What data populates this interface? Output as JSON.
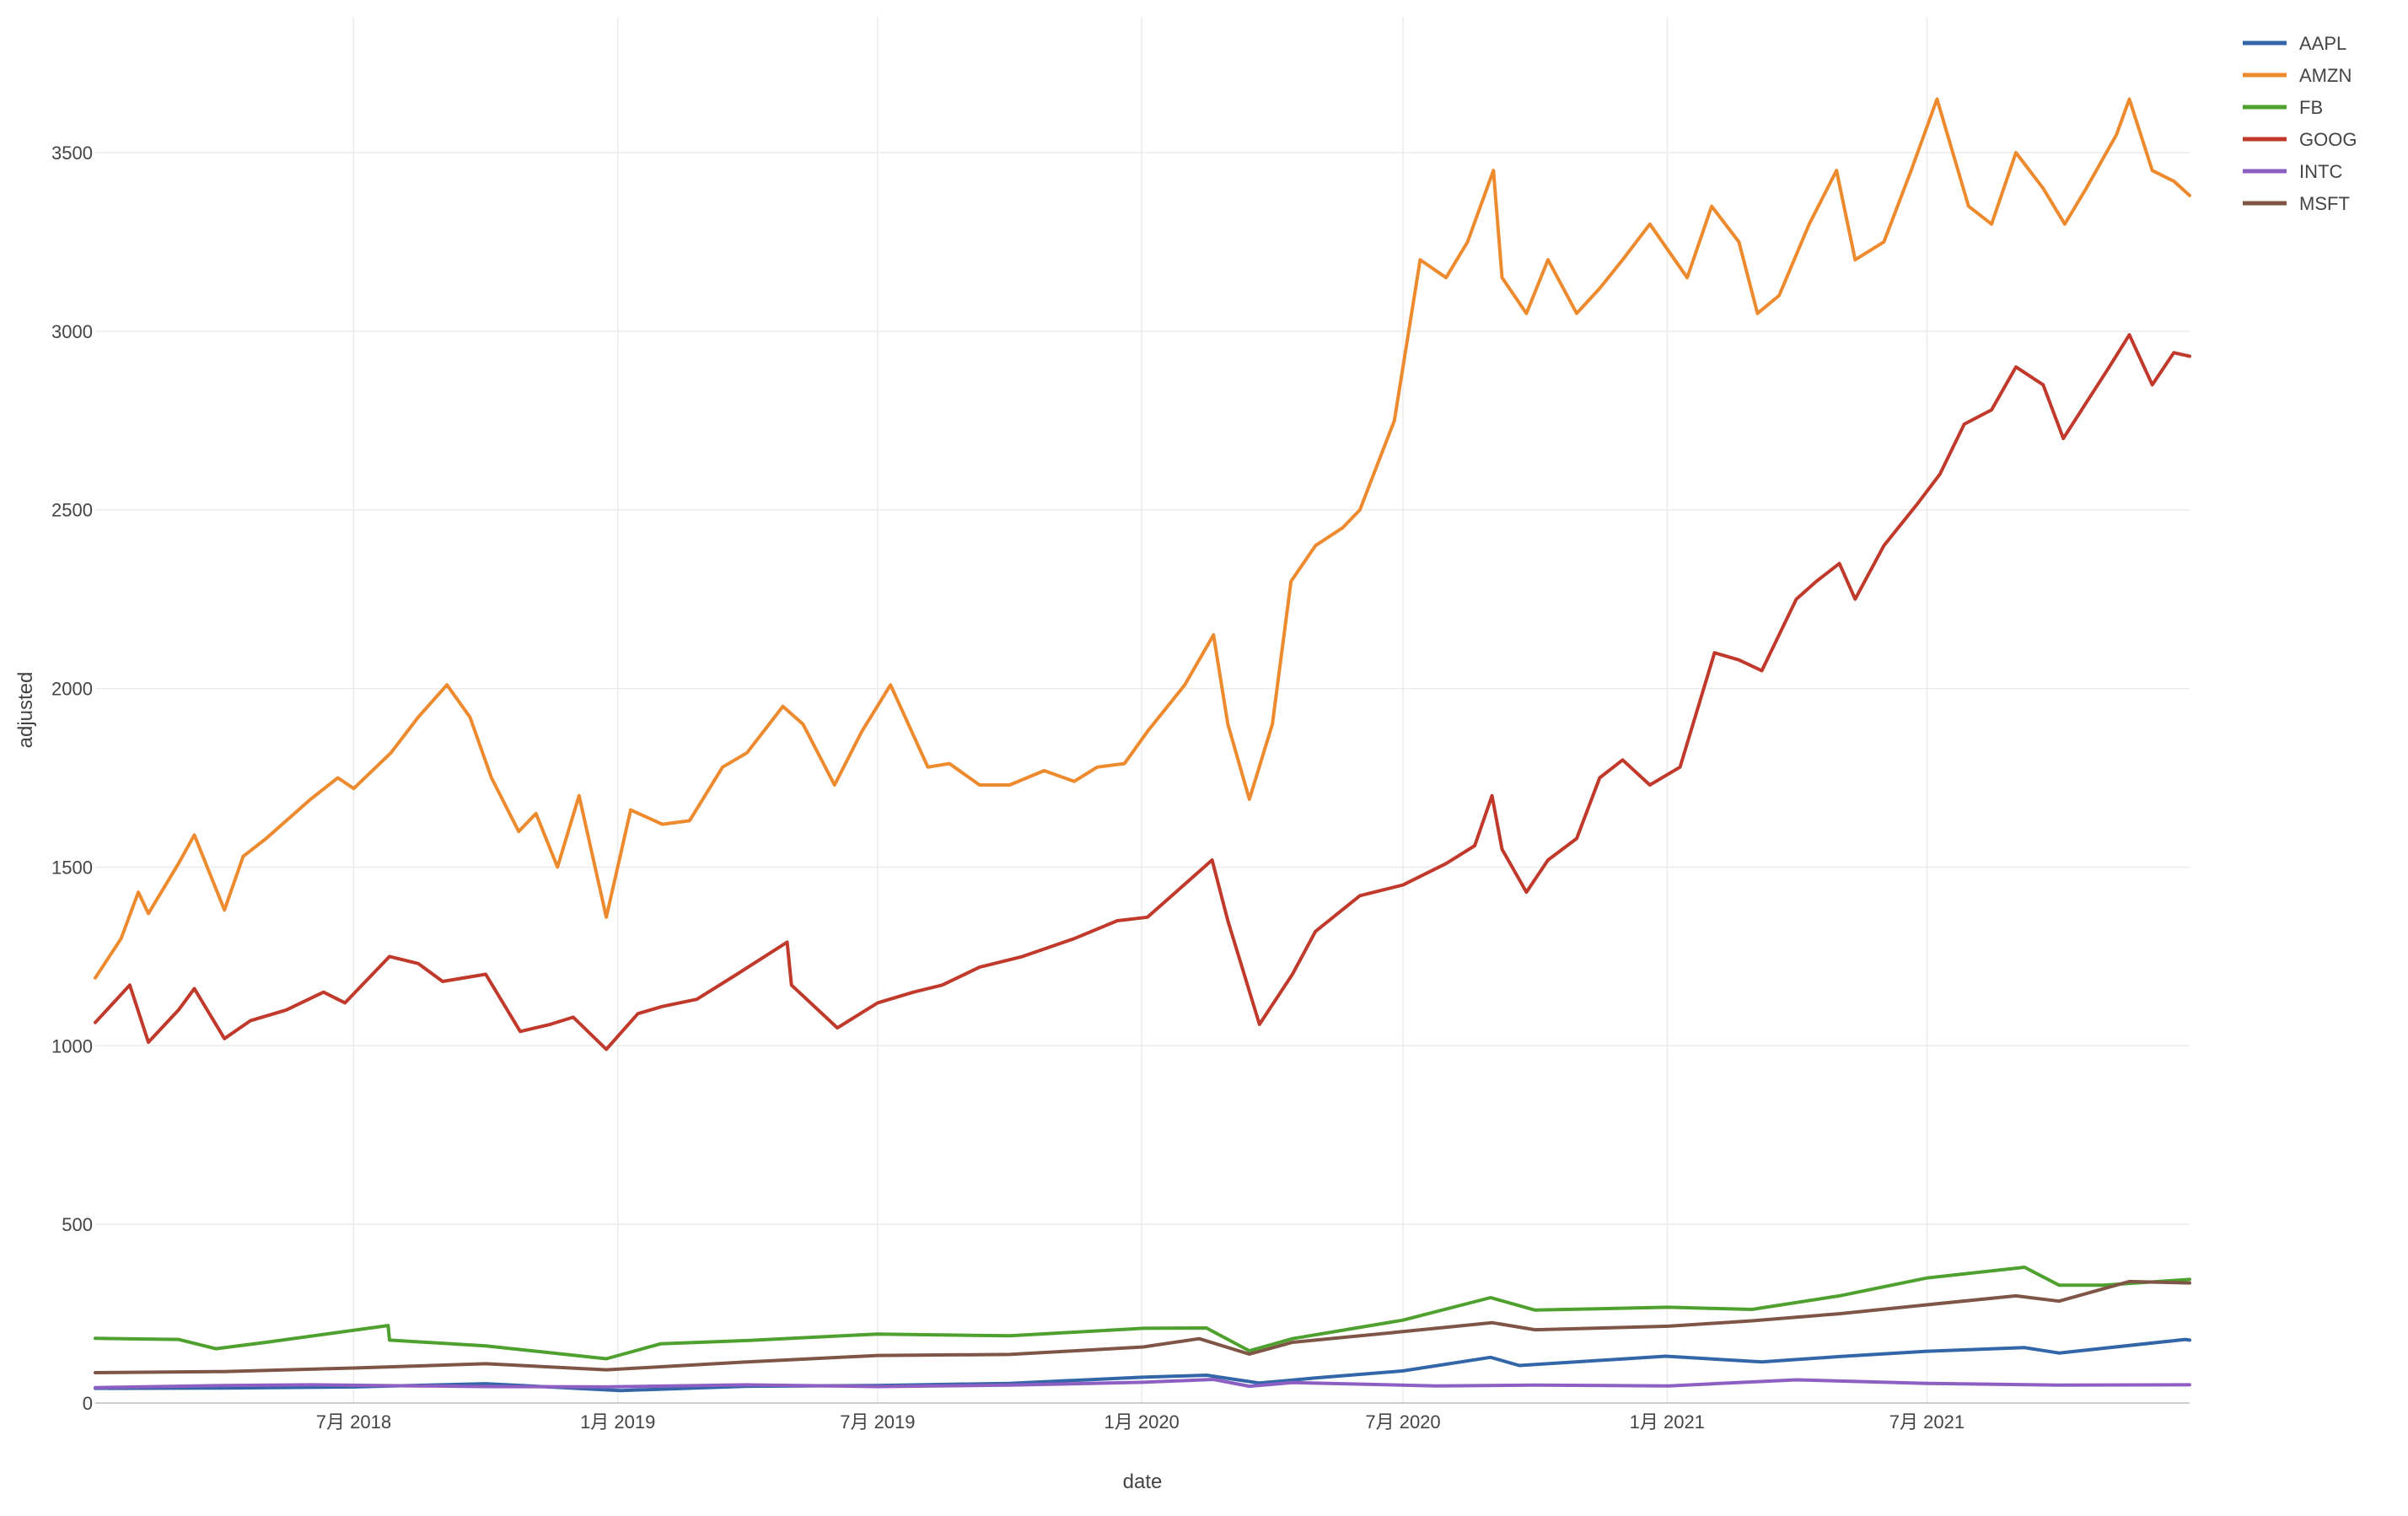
{
  "chart_data": {
    "type": "line",
    "xlabel": "date",
    "ylabel": "adjusted",
    "ylim": [
      0,
      3880
    ],
    "xlim": [
      "2018-01-02",
      "2021-12-31"
    ],
    "grid": true,
    "legend_position": "top-right",
    "y_ticks": [
      0,
      500,
      1000,
      1500,
      2000,
      2500,
      3000,
      3500
    ],
    "x_ticks": [
      {
        "date": "2018-07-01",
        "label": "7月 2018"
      },
      {
        "date": "2019-01-01",
        "label": "1月 2019"
      },
      {
        "date": "2019-07-01",
        "label": "7月 2019"
      },
      {
        "date": "2020-01-01",
        "label": "1月 2020"
      },
      {
        "date": "2020-07-01",
        "label": "7月 2020"
      },
      {
        "date": "2021-01-01",
        "label": "1月 2021"
      },
      {
        "date": "2021-07-01",
        "label": "7月 2021"
      }
    ],
    "series": [
      {
        "name": "AAPL",
        "color": "#3266a8",
        "x": [
          "2018-01-02",
          "2018-04-01",
          "2018-07-01",
          "2018-10-01",
          "2019-01-03",
          "2019-04-01",
          "2019-07-01",
          "2019-10-01",
          "2019-12-31",
          "2020-02-15",
          "2020-03-23",
          "2020-05-01",
          "2020-07-01",
          "2020-08-31",
          "2020-09-20",
          "2020-12-31",
          "2021-03-08",
          "2021-05-01",
          "2021-07-01",
          "2021-09-07",
          "2021-10-01",
          "2021-12-28",
          "2021-12-31"
        ],
        "values": [
          41,
          42,
          45,
          54,
          35,
          47,
          49,
          55,
          72,
          78,
          56,
          70,
          90,
          128,
          105,
          131,
          115,
          130,
          145,
          155,
          140,
          178,
          176
        ]
      },
      {
        "name": "AMZN",
        "color": "#ee8a2e",
        "x": [
          "2018-01-02",
          "2018-01-20",
          "2018-02-01",
          "2018-02-08",
          "2018-03-01",
          "2018-03-12",
          "2018-04-02",
          "2018-04-15",
          "2018-05-01",
          "2018-06-01",
          "2018-06-20",
          "2018-07-01",
          "2018-07-27",
          "2018-08-15",
          "2018-09-04",
          "2018-09-20",
          "2018-10-05",
          "2018-10-24",
          "2018-11-05",
          "2018-11-20",
          "2018-12-05",
          "2018-12-24",
          "2019-01-10",
          "2019-02-01",
          "2019-02-20",
          "2019-03-15",
          "2019-04-01",
          "2019-04-26",
          "2019-05-10",
          "2019-06-01",
          "2019-06-20",
          "2019-07-10",
          "2019-08-05",
          "2019-08-20",
          "2019-09-10",
          "2019-10-01",
          "2019-10-25",
          "2019-11-15",
          "2019-12-01",
          "2019-12-20",
          "2020-01-05",
          "2020-01-31",
          "2020-02-20",
          "2020-03-01",
          "2020-03-16",
          "2020-04-01",
          "2020-04-14",
          "2020-05-01",
          "2020-05-20",
          "2020-06-01",
          "2020-06-25",
          "2020-07-01",
          "2020-07-13",
          "2020-07-31",
          "2020-08-15",
          "2020-09-02",
          "2020-09-08",
          "2020-09-25",
          "2020-10-10",
          "2020-10-30",
          "2020-11-15",
          "2020-12-01",
          "2020-12-20",
          "2021-01-15",
          "2021-02-01",
          "2021-02-20",
          "2021-03-05",
          "2021-03-20",
          "2021-04-10",
          "2021-04-29",
          "2021-05-12",
          "2021-06-01",
          "2021-06-20",
          "2021-07-08",
          "2021-07-30",
          "2021-08-15",
          "2021-09-01",
          "2021-09-20",
          "2021-10-05",
          "2021-10-20",
          "2021-11-10",
          "2021-11-19",
          "2021-12-05",
          "2021-12-20",
          "2021-12-31"
        ],
        "values": [
          1190,
          1300,
          1430,
          1370,
          1510,
          1590,
          1380,
          1530,
          1580,
          1690,
          1750,
          1720,
          1820,
          1920,
          2010,
          1920,
          1750,
          1600,
          1650,
          1500,
          1700,
          1360,
          1660,
          1620,
          1630,
          1780,
          1820,
          1950,
          1900,
          1730,
          1880,
          2010,
          1780,
          1790,
          1730,
          1730,
          1770,
          1740,
          1780,
          1790,
          1880,
          2010,
          2150,
          1900,
          1690,
          1900,
          2300,
          2400,
          2450,
          2500,
          2750,
          2900,
          3200,
          3150,
          3250,
          3450,
          3150,
          3050,
          3200,
          3050,
          3120,
          3200,
          3300,
          3150,
          3350,
          3250,
          3050,
          3100,
          3300,
          3450,
          3200,
          3250,
          3450,
          3650,
          3350,
          3300,
          3500,
          3400,
          3300,
          3400,
          3550,
          3650,
          3450,
          3420,
          3380
        ]
      },
      {
        "name": "FB",
        "color": "#4ea12e",
        "x": [
          "2018-01-02",
          "2018-03-01",
          "2018-03-27",
          "2018-05-01",
          "2018-07-25",
          "2018-07-26",
          "2018-10-01",
          "2018-12-24",
          "2019-01-31",
          "2019-04-01",
          "2019-07-01",
          "2019-10-01",
          "2020-01-02",
          "2020-02-15",
          "2020-03-16",
          "2020-04-15",
          "2020-07-01",
          "2020-08-31",
          "2020-10-01",
          "2021-01-02",
          "2021-03-01",
          "2021-05-01",
          "2021-07-01",
          "2021-09-07",
          "2021-10-01",
          "2021-11-01",
          "2021-12-31"
        ],
        "values": [
          181,
          178,
          152,
          170,
          217,
          176,
          160,
          124,
          166,
          175,
          193,
          188,
          209,
          210,
          146,
          180,
          232,
          295,
          260,
          268,
          262,
          300,
          350,
          380,
          330,
          330,
          346
        ]
      },
      {
        "name": "GOOG",
        "color": "#c0392b",
        "x": [
          "2018-01-02",
          "2018-01-26",
          "2018-02-08",
          "2018-03-01",
          "2018-03-12",
          "2018-04-02",
          "2018-04-20",
          "2018-05-15",
          "2018-06-10",
          "2018-06-25",
          "2018-07-26",
          "2018-08-15",
          "2018-09-01",
          "2018-10-01",
          "2018-10-25",
          "2018-11-15",
          "2018-12-01",
          "2018-12-24",
          "2019-01-15",
          "2019-02-01",
          "2019-02-25",
          "2019-03-25",
          "2019-04-29",
          "2019-05-02",
          "2019-06-03",
          "2019-07-01",
          "2019-07-26",
          "2019-08-15",
          "2019-09-10",
          "2019-10-10",
          "2019-11-15",
          "2019-12-15",
          "2020-01-05",
          "2020-02-19",
          "2020-03-01",
          "2020-03-23",
          "2020-04-15",
          "2020-05-01",
          "2020-06-01",
          "2020-07-01",
          "2020-07-31",
          "2020-08-20",
          "2020-09-01",
          "2020-09-08",
          "2020-09-25",
          "2020-10-10",
          "2020-10-30",
          "2020-11-15",
          "2020-12-01",
          "2020-12-20",
          "2021-01-10",
          "2021-02-03",
          "2021-02-20",
          "2021-03-08",
          "2021-04-01",
          "2021-04-15",
          "2021-05-01",
          "2021-05-12",
          "2021-06-01",
          "2021-06-25",
          "2021-07-10",
          "2021-07-27",
          "2021-08-15",
          "2021-09-01",
          "2021-09-20",
          "2021-10-04",
          "2021-10-20",
          "2021-11-05",
          "2021-11-19",
          "2021-12-05",
          "2021-12-20",
          "2021-12-31"
        ],
        "values": [
          1065,
          1170,
          1010,
          1100,
          1160,
          1020,
          1070,
          1100,
          1150,
          1120,
          1250,
          1230,
          1180,
          1200,
          1040,
          1060,
          1080,
          990,
          1090,
          1110,
          1130,
          1200,
          1290,
          1170,
          1050,
          1120,
          1150,
          1170,
          1220,
          1250,
          1300,
          1350,
          1360,
          1520,
          1350,
          1060,
          1200,
          1320,
          1420,
          1450,
          1510,
          1560,
          1700,
          1550,
          1430,
          1520,
          1580,
          1750,
          1800,
          1730,
          1780,
          2100,
          2080,
          2050,
          2250,
          2300,
          2350,
          2250,
          2400,
          2520,
          2600,
          2740,
          2780,
          2900,
          2850,
          2700,
          2800,
          2900,
          2990,
          2850,
          2940,
          2930
        ]
      },
      {
        "name": "INTC",
        "color": "#8e5fc2",
        "x": [
          "2018-01-02",
          "2018-04-01",
          "2018-06-01",
          "2018-10-01",
          "2018-12-24",
          "2019-04-01",
          "2019-07-01",
          "2019-10-01",
          "2020-01-02",
          "2020-02-20",
          "2020-03-16",
          "2020-04-15",
          "2020-07-24",
          "2020-10-01",
          "2021-01-02",
          "2021-04-01",
          "2021-07-01",
          "2021-10-01",
          "2021-12-31"
        ],
        "values": [
          43,
          49,
          51,
          46,
          45,
          51,
          46,
          50,
          58,
          66,
          47,
          57,
          48,
          50,
          48,
          65,
          55,
          50,
          51
        ]
      },
      {
        "name": "MSFT",
        "color": "#7f5546",
        "x": [
          "2018-01-02",
          "2018-04-01",
          "2018-07-01",
          "2018-10-01",
          "2018-12-24",
          "2019-04-01",
          "2019-07-01",
          "2019-10-01",
          "2020-01-02",
          "2020-02-10",
          "2020-03-16",
          "2020-04-15",
          "2020-07-01",
          "2020-09-01",
          "2020-10-01",
          "2021-01-02",
          "2021-03-01",
          "2021-05-01",
          "2021-07-01",
          "2021-09-01",
          "2021-10-01",
          "2021-11-19",
          "2021-12-31"
        ],
        "values": [
          85,
          88,
          98,
          110,
          93,
          115,
          133,
          136,
          157,
          180,
          137,
          170,
          200,
          225,
          205,
          215,
          230,
          250,
          275,
          300,
          285,
          340,
          336
        ]
      }
    ]
  }
}
